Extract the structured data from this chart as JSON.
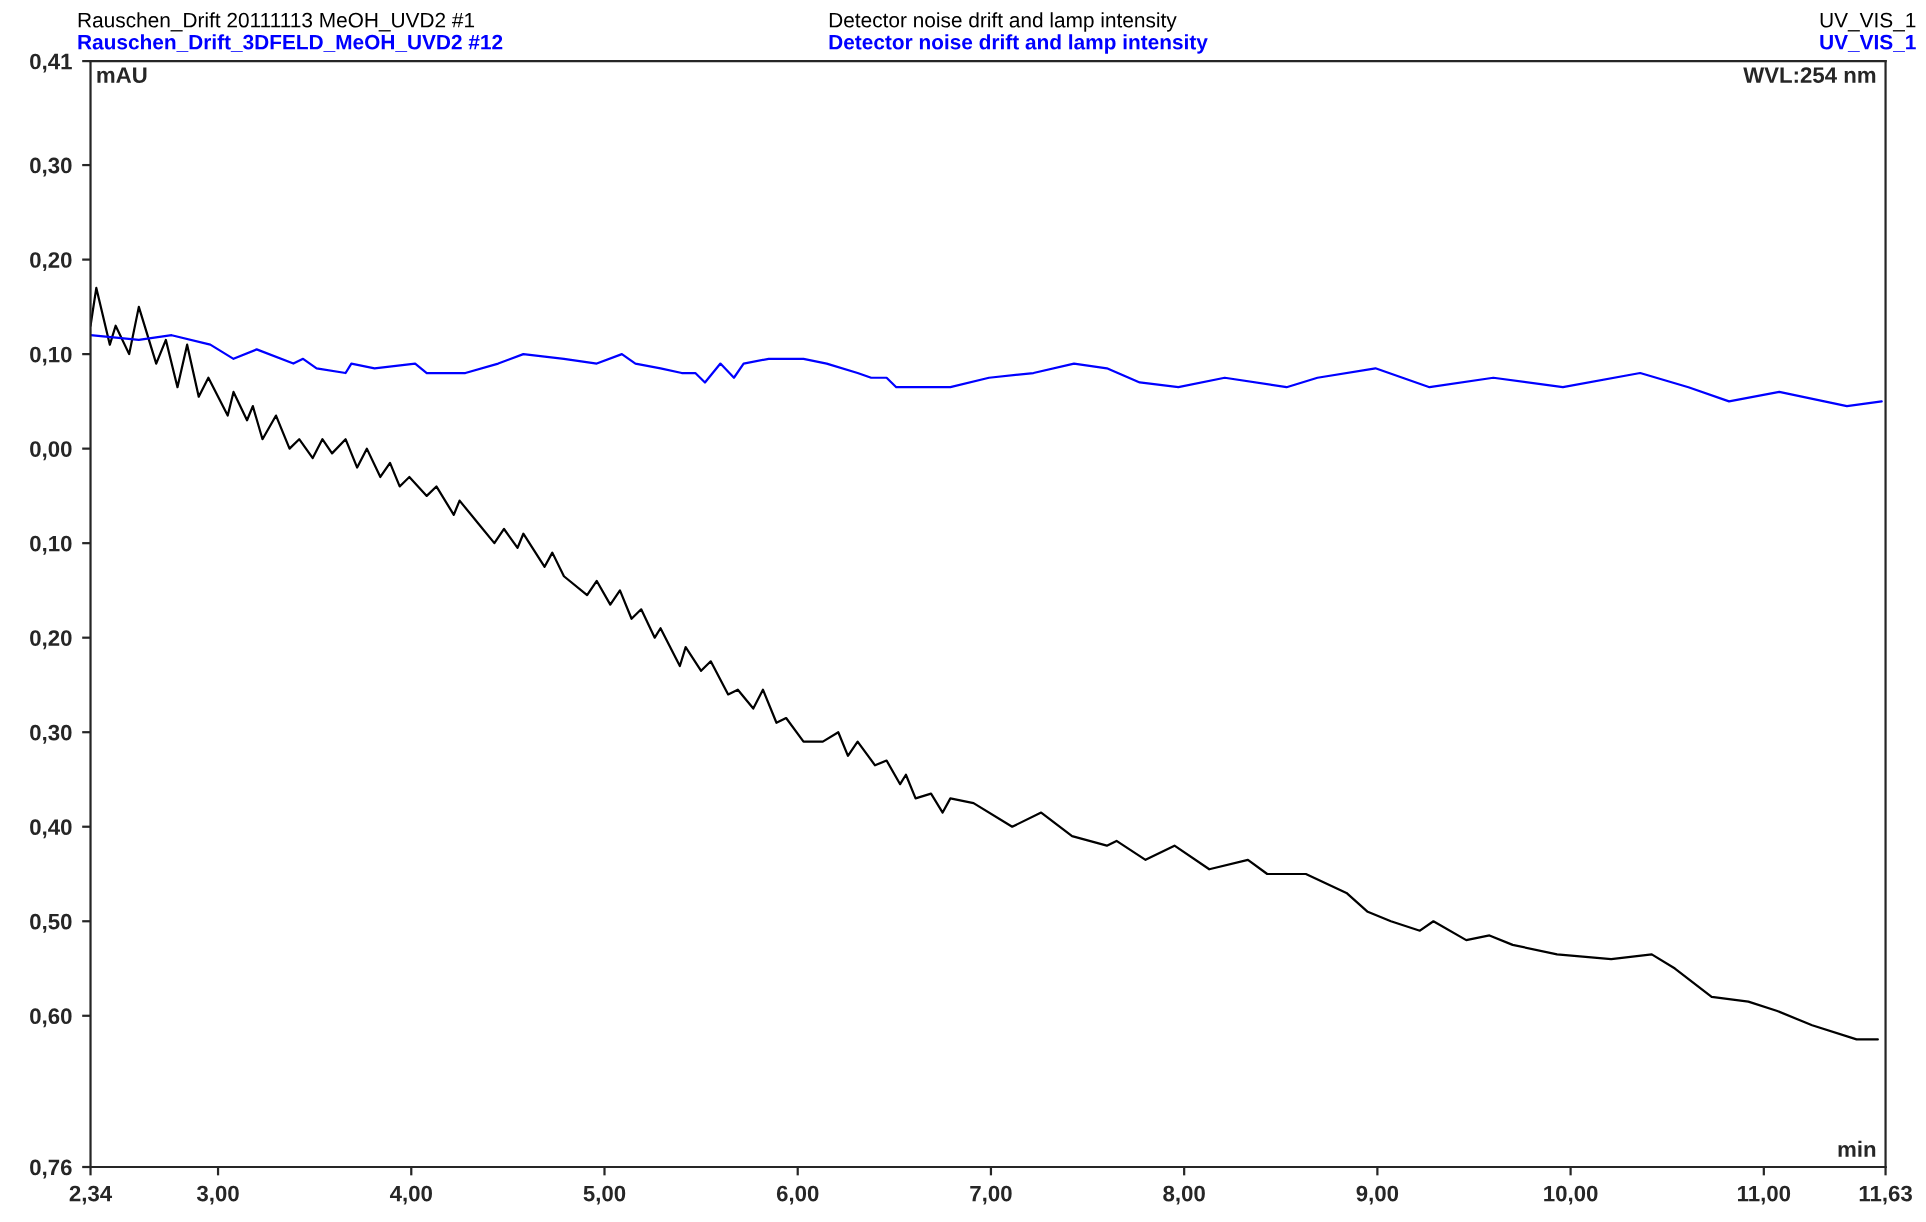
{
  "chart_data": {
    "type": "line",
    "title": "Detector noise drift and lamp intensity",
    "subtitle": "Detector noise drift and lamp intensity",
    "ylabel": "mAU",
    "xlabel": "min",
    "annotations": [
      "UV_VIS_1",
      "UV_VIS_1",
      "WVL:254 nm"
    ],
    "xlim": [
      2.34,
      11.63
    ],
    "xticks": [
      {
        "value": 2.34,
        "label": "2,34"
      },
      {
        "value": 3,
        "label": "3,00"
      },
      {
        "value": 4,
        "label": "4,00"
      },
      {
        "value": 5,
        "label": "5,00"
      },
      {
        "value": 6,
        "label": "6,00"
      },
      {
        "value": 7,
        "label": "7,00"
      },
      {
        "value": 8,
        "label": "8,00"
      },
      {
        "value": 9,
        "label": "9,00"
      },
      {
        "value": 10,
        "label": "10,00"
      },
      {
        "value": 11,
        "label": "11,00"
      },
      {
        "value": 11.63,
        "label": "11,63"
      }
    ],
    "ylim": [
      -0.76,
      0.41
    ],
    "yticks": [
      {
        "value": -0.76,
        "label": "0,76"
      },
      {
        "value": -0.6,
        "label": "0,60"
      },
      {
        "value": -0.5,
        "label": "0,50"
      },
      {
        "value": -0.4,
        "label": "0,40"
      },
      {
        "value": -0.3,
        "label": "0,30"
      },
      {
        "value": -0.2,
        "label": "0,20"
      },
      {
        "value": -0.1,
        "label": "0,10"
      },
      {
        "value": 0,
        "label": "0,00"
      },
      {
        "value": 0.1,
        "label": "0,10"
      },
      {
        "value": 0.2,
        "label": "0,20"
      },
      {
        "value": 0.3,
        "label": "0,30"
      },
      {
        "value": 0.41,
        "label": "0,41"
      }
    ],
    "grid": false,
    "legend": false,
    "series": [
      {
        "name": "Rauschen_Drift 20111113 MeOH_UVD2 #1",
        "color": "#000000",
        "x": [
          2.34,
          2.37,
          2.44,
          2.47,
          2.54,
          2.59,
          2.68,
          2.73,
          2.79,
          2.84,
          2.9,
          2.95,
          3.05,
          3.08,
          3.15,
          3.18,
          3.23,
          3.3,
          3.37,
          3.42,
          3.49,
          3.54,
          3.59,
          3.66,
          3.72,
          3.77,
          3.84,
          3.89,
          3.94,
          3.99,
          4.08,
          4.13,
          4.22,
          4.25,
          4.35,
          4.43,
          4.48,
          4.55,
          4.58,
          4.69,
          4.73,
          4.79,
          4.91,
          4.96,
          5.03,
          5.08,
          5.14,
          5.19,
          5.26,
          5.29,
          5.39,
          5.42,
          5.5,
          5.55,
          5.64,
          5.69,
          5.77,
          5.82,
          5.89,
          5.94,
          6.03,
          6.13,
          6.21,
          6.26,
          6.31,
          6.4,
          6.46,
          6.53,
          6.56,
          6.61,
          6.69,
          6.75,
          6.79,
          6.91,
          7.11,
          7.26,
          7.42,
          7.6,
          7.65,
          7.8,
          7.95,
          8.13,
          8.33,
          8.43,
          8.63,
          8.84,
          8.95,
          9.07,
          9.22,
          9.29,
          9.46,
          9.58,
          9.7,
          9.93,
          10.21,
          10.42,
          10.54,
          10.73,
          10.92,
          11.07,
          11.25,
          11.48,
          11.59
        ],
        "values": [
          0.13,
          0.17,
          0.11,
          0.13,
          0.1,
          0.15,
          0.09,
          0.115,
          0.065,
          0.11,
          0.055,
          0.075,
          0.035,
          0.06,
          0.03,
          0.045,
          0.01,
          0.035,
          0.0,
          0.01,
          -0.01,
          0.01,
          -0.005,
          0.01,
          -0.02,
          0.0,
          -0.03,
          -0.015,
          -0.04,
          -0.03,
          -0.05,
          -0.04,
          -0.07,
          -0.055,
          -0.08,
          -0.1,
          -0.085,
          -0.105,
          -0.09,
          -0.125,
          -0.11,
          -0.135,
          -0.155,
          -0.14,
          -0.165,
          -0.15,
          -0.18,
          -0.17,
          -0.2,
          -0.19,
          -0.23,
          -0.21,
          -0.235,
          -0.225,
          -0.26,
          -0.255,
          -0.275,
          -0.255,
          -0.29,
          -0.285,
          -0.31,
          -0.31,
          -0.3,
          -0.325,
          -0.31,
          -0.335,
          -0.33,
          -0.355,
          -0.345,
          -0.37,
          -0.365,
          -0.385,
          -0.37,
          -0.375,
          -0.4,
          -0.385,
          -0.41,
          -0.42,
          -0.415,
          -0.435,
          -0.42,
          -0.445,
          -0.435,
          -0.45,
          -0.45,
          -0.47,
          -0.49,
          -0.5,
          -0.51,
          -0.5,
          -0.52,
          -0.515,
          -0.525,
          -0.535,
          -0.54,
          -0.535,
          -0.55,
          -0.58,
          -0.585,
          -0.595,
          -0.61,
          -0.625,
          -0.625
        ]
      },
      {
        "name": "Rauschen_Drift_3DFELD_MeOH_UVD2 #12",
        "color": "#0000ff",
        "x": [
          2.34,
          2.59,
          2.76,
          2.96,
          3.08,
          3.2,
          3.39,
          3.44,
          3.51,
          3.66,
          3.69,
          3.81,
          4.02,
          4.08,
          4.28,
          4.45,
          4.58,
          4.79,
          4.96,
          5.09,
          5.16,
          5.29,
          5.4,
          5.47,
          5.52,
          5.6,
          5.67,
          5.72,
          5.85,
          6.03,
          6.15,
          6.31,
          6.38,
          6.46,
          6.51,
          6.79,
          6.99,
          7.22,
          7.43,
          7.6,
          7.77,
          7.97,
          8.21,
          8.53,
          8.69,
          8.99,
          9.27,
          9.6,
          9.96,
          10.36,
          10.61,
          10.82,
          11.08,
          11.43,
          11.61
        ],
        "values": [
          0.12,
          0.115,
          0.12,
          0.11,
          0.095,
          0.105,
          0.09,
          0.095,
          0.085,
          0.08,
          0.09,
          0.085,
          0.09,
          0.08,
          0.08,
          0.09,
          0.1,
          0.095,
          0.09,
          0.1,
          0.09,
          0.085,
          0.08,
          0.08,
          0.07,
          0.09,
          0.075,
          0.09,
          0.095,
          0.095,
          0.09,
          0.08,
          0.075,
          0.075,
          0.065,
          0.065,
          0.075,
          0.08,
          0.09,
          0.085,
          0.07,
          0.065,
          0.075,
          0.065,
          0.075,
          0.085,
          0.065,
          0.075,
          0.065,
          0.08,
          0.065,
          0.05,
          0.06,
          0.045,
          0.05
        ]
      }
    ]
  }
}
